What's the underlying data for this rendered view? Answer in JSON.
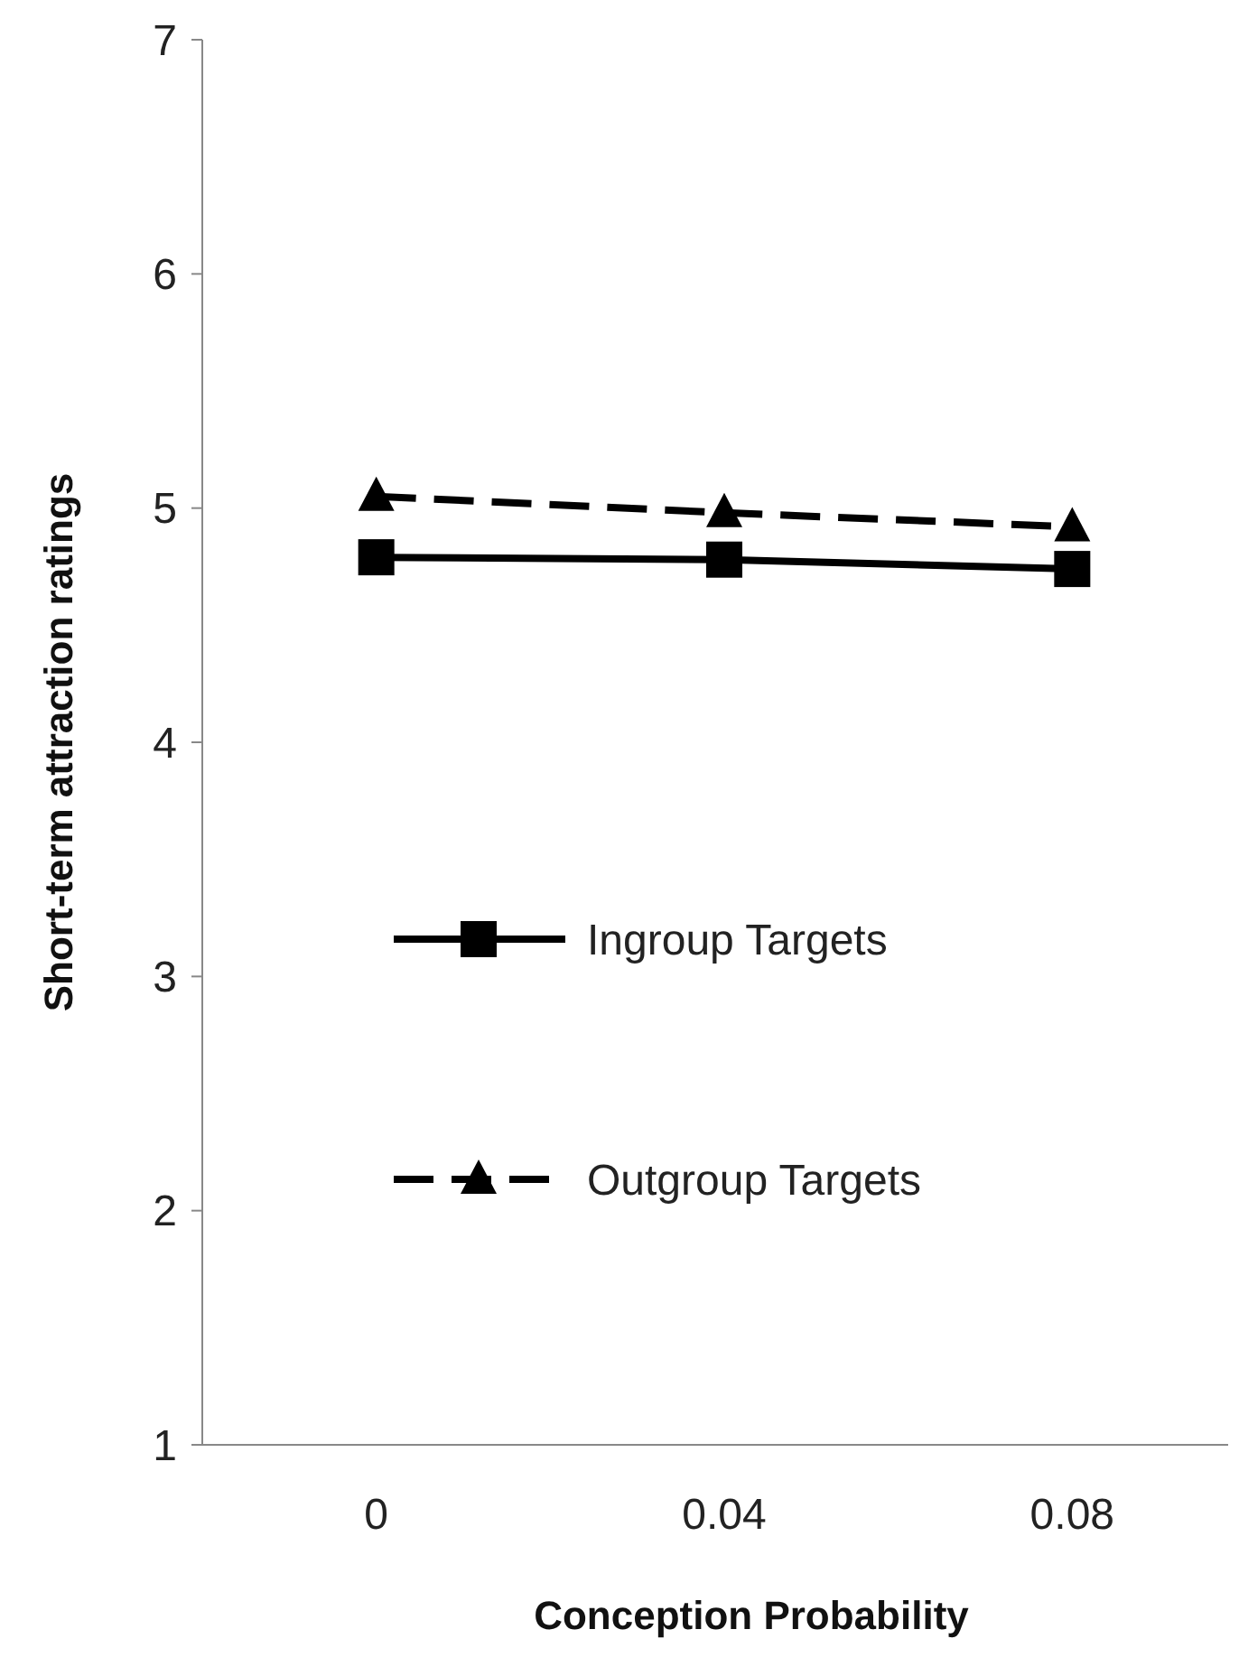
{
  "chart_data": {
    "type": "line",
    "xlabel": "Conception Probability",
    "ylabel": "Short-term attraction ratings",
    "categories": [
      "0",
      "0.04",
      "0.08"
    ],
    "series": [
      {
        "name": "Ingroup Targets",
        "color": "#000000",
        "values": [
          4.79,
          4.78,
          4.74
        ],
        "marker": "square",
        "line_style": "solid"
      },
      {
        "name": "Outgroup Targets",
        "color": "#000000",
        "values": [
          5.05,
          4.98,
          4.92
        ],
        "marker": "triangle",
        "line_style": "dashed"
      }
    ],
    "ylim": [
      1,
      7
    ],
    "yticks": [
      1,
      2,
      3,
      4,
      5,
      6,
      7
    ],
    "grid": false,
    "legend": "left"
  }
}
